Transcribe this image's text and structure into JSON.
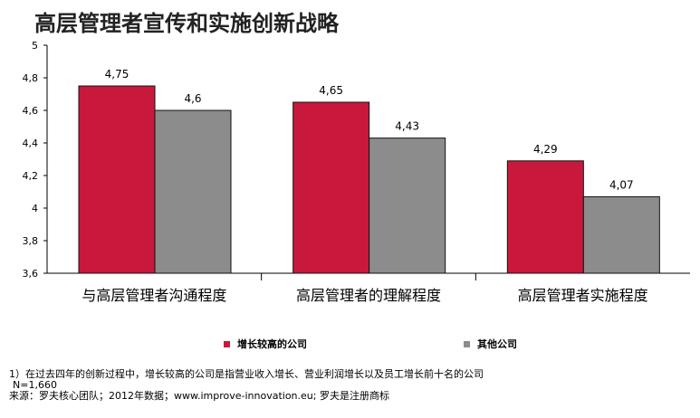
{
  "title": "高层管理者宣传和实施创新战略",
  "chart_data": {
    "type": "bar",
    "categories": [
      "与高层管理者沟通程度",
      "高层管理者的理解程度",
      "高层管理者实施程度"
    ],
    "series": [
      {
        "name": "增长较高的公司",
        "values": [
          4.75,
          4.65,
          4.29
        ],
        "labels": [
          "4,75",
          "4,65",
          "4,29"
        ],
        "color": "#c8193d"
      },
      {
        "name": "其他公司",
        "values": [
          4.6,
          4.43,
          4.07
        ],
        "labels": [
          "4,6",
          "4,43",
          "4,07"
        ],
        "color": "#8c8c8c"
      }
    ],
    "ylim": [
      3.6,
      5
    ],
    "yticks": [
      3.6,
      3.8,
      4,
      4.2,
      4.4,
      4.6,
      4.8,
      5
    ],
    "ytick_labels": [
      "3,6",
      "3,8",
      "4",
      "4,2",
      "4,4",
      "4,6",
      "4,8",
      "5"
    ],
    "grid": false,
    "legend_position": "bottom"
  },
  "footnotes": {
    "note1": "1）在过去四年的创新过程中，增长较高的公司是指营业收入增长、营业利润增长以及员工增长前十名的公司",
    "n": "N=1,660",
    "source": "来源：罗夫核心团队；2012年数据；www.improve-innovation.eu; 罗夫是注册商标"
  }
}
